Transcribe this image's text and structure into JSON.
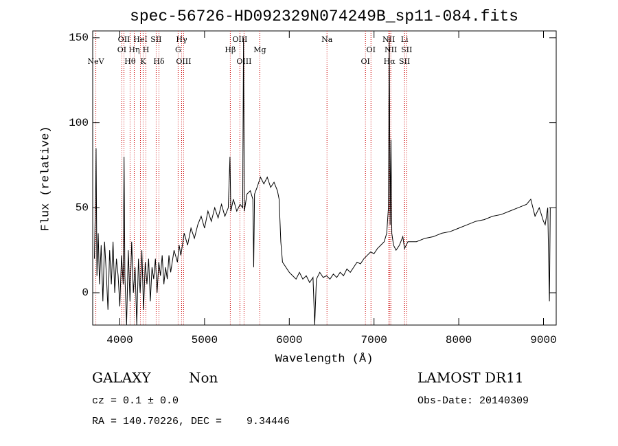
{
  "chart_data": {
    "type": "line",
    "title": "spec-56726-HD092329N074249B_sp11-084.fits",
    "x_label": "Wavelength (Å)",
    "y_label": "Flux (relative)",
    "xlim": [
      3680,
      9150
    ],
    "ylim": [
      -19,
      154
    ],
    "xticks": [
      4000,
      5000,
      6000,
      7000,
      8000,
      9000
    ],
    "yticks": [
      0,
      50,
      100,
      150
    ],
    "line_color": "#000000",
    "marker_color": "#cc0000",
    "x": [
      3700,
      3715,
      3720,
      3730,
      3745,
      3760,
      3780,
      3800,
      3820,
      3840,
      3860,
      3880,
      3900,
      3920,
      3940,
      3960,
      3980,
      4000,
      4020,
      4040,
      4050,
      4060,
      4080,
      4100,
      4120,
      4140,
      4160,
      4180,
      4200,
      4220,
      4240,
      4260,
      4280,
      4300,
      4320,
      4340,
      4360,
      4380,
      4400,
      4420,
      4440,
      4460,
      4480,
      4500,
      4520,
      4540,
      4560,
      4580,
      4600,
      4640,
      4680,
      4700,
      4720,
      4760,
      4800,
      4840,
      4880,
      4920,
      4960,
      5000,
      5040,
      5080,
      5120,
      5160,
      5200,
      5240,
      5280,
      5300,
      5310,
      5340,
      5380,
      5420,
      5450,
      5460,
      5470,
      5500,
      5540,
      5570,
      5580,
      5590,
      5620,
      5660,
      5700,
      5740,
      5780,
      5820,
      5860,
      5880,
      5900,
      5920,
      5960,
      6000,
      6040,
      6080,
      6120,
      6160,
      6200,
      6240,
      6280,
      6300,
      6320,
      6360,
      6400,
      6440,
      6480,
      6520,
      6560,
      6600,
      6640,
      6680,
      6720,
      6760,
      6800,
      6840,
      6880,
      6920,
      6960,
      7000,
      7040,
      7080,
      7120,
      7150,
      7170,
      7180,
      7190,
      7200,
      7210,
      7230,
      7260,
      7300,
      7340,
      7360,
      7400,
      7500,
      7600,
      7700,
      7800,
      7900,
      8000,
      8100,
      8200,
      8300,
      8400,
      8500,
      8600,
      8700,
      8800,
      8850,
      8900,
      8950,
      9000,
      9020,
      9050,
      9070,
      9080
    ],
    "values": [
      20,
      60,
      85,
      10,
      35,
      5,
      28,
      -5,
      30,
      12,
      -10,
      25,
      5,
      30,
      0,
      20,
      10,
      -8,
      22,
      5,
      80,
      10,
      -19,
      25,
      -5,
      30,
      0,
      15,
      -19,
      20,
      0,
      25,
      -10,
      18,
      5,
      20,
      -5,
      15,
      8,
      20,
      0,
      18,
      10,
      22,
      5,
      15,
      8,
      22,
      12,
      25,
      18,
      28,
      22,
      35,
      28,
      38,
      32,
      40,
      45,
      38,
      48,
      42,
      50,
      44,
      52,
      45,
      50,
      80,
      48,
      55,
      48,
      52,
      50,
      150,
      48,
      58,
      60,
      55,
      15,
      58,
      62,
      68,
      64,
      68,
      62,
      65,
      60,
      55,
      30,
      18,
      15,
      12,
      10,
      8,
      12,
      8,
      10,
      6,
      9,
      -19,
      8,
      12,
      9,
      10,
      8,
      11,
      9,
      12,
      10,
      14,
      12,
      15,
      18,
      17,
      20,
      22,
      24,
      23,
      26,
      28,
      30,
      35,
      50,
      150,
      40,
      90,
      35,
      28,
      25,
      28,
      33,
      26,
      30,
      30,
      32,
      33,
      35,
      36,
      38,
      40,
      42,
      43,
      45,
      46,
      48,
      50,
      52,
      55,
      45,
      50,
      42,
      40,
      50,
      -5,
      50
    ],
    "line_labels": [
      [
        {
          "label": "OII",
          "x": 4049
        },
        {
          "label": "HeI",
          "x": 4243
        },
        {
          "label": "SII",
          "x": 4429
        },
        {
          "label": "Hγ",
          "x": 4729
        },
        {
          "label": "OIII",
          "x": 5417
        },
        {
          "label": "Na",
          "x": 6445
        },
        {
          "label": "NII",
          "x": 7174
        },
        {
          "label": "Li",
          "x": 7360
        }
      ],
      [
        {
          "label": "OI",
          "x": 4024
        },
        {
          "label": "Hη",
          "x": 4170
        },
        {
          "label": "H",
          "x": 4308
        },
        {
          "label": "G",
          "x": 4688
        },
        {
          "label": "Hβ",
          "x": 5304
        },
        {
          "label": "Mg",
          "x": 5652
        },
        {
          "label": "OI",
          "x": 6964
        },
        {
          "label": "NII",
          "x": 7198
        },
        {
          "label": "SII",
          "x": 7385
        }
      ],
      [
        {
          "label": "NeV",
          "x": 3717
        },
        {
          "label": "Hθ",
          "x": 4121
        },
        {
          "label": "K",
          "x": 4275
        },
        {
          "label": "Hδ",
          "x": 4462
        },
        {
          "label": "OIII",
          "x": 4753
        },
        {
          "label": "OIII",
          "x": 5466
        },
        {
          "label": "OI",
          "x": 6899
        },
        {
          "label": "Hα",
          "x": 7182
        },
        {
          "label": "SII",
          "x": 7360
        }
      ]
    ],
    "annotations": {
      "class": "GALAXY",
      "subclass": "Non",
      "survey": "LAMOST DR11",
      "cz": "cz = 0.1 ± 0.0",
      "obs_date": "Obs-Date: 20140309",
      "coords": "RA = 140.70226, DEC =    9.34446"
    }
  }
}
